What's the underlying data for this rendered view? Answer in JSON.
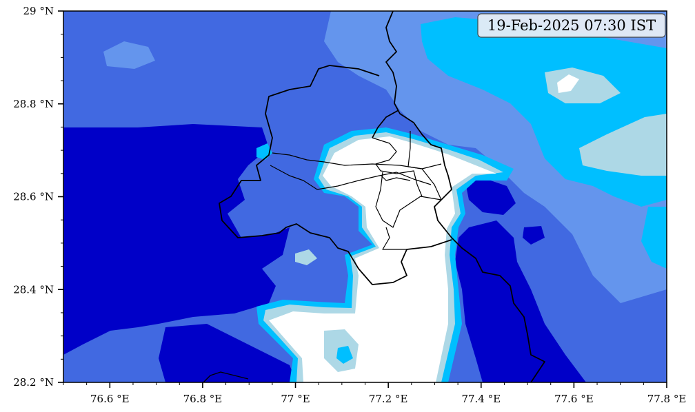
{
  "timestamp_label": "19-Feb-2025 07:30 IST",
  "colors": {
    "level_1": "#0000c8",
    "level_2": "#4169e1",
    "level_3": "#6495ed",
    "level_4": "#00bfff",
    "level_5": "#add8e6",
    "level_6": "#ffffff",
    "boundary": "#000000"
  },
  "x_axis": {
    "ticks": [
      {
        "value": 76.6,
        "label": "76.6 °E"
      },
      {
        "value": 76.8,
        "label": "76.8 °E"
      },
      {
        "value": 77.0,
        "label": "77 °E"
      },
      {
        "value": 77.2,
        "label": "77.2 °E"
      },
      {
        "value": 77.4,
        "label": "77.4 °E"
      },
      {
        "value": 77.6,
        "label": "77.6 °E"
      },
      {
        "value": 77.8,
        "label": "77.8 °E"
      }
    ]
  },
  "y_axis": {
    "ticks": [
      {
        "value": 29.0,
        "label": "29 °N"
      },
      {
        "value": 28.8,
        "label": "28.8 °N"
      },
      {
        "value": 28.6,
        "label": "28.6 °N"
      },
      {
        "value": 28.4,
        "label": "28.4 °N"
      },
      {
        "value": 28.2,
        "label": "28.2 °N"
      }
    ]
  }
}
